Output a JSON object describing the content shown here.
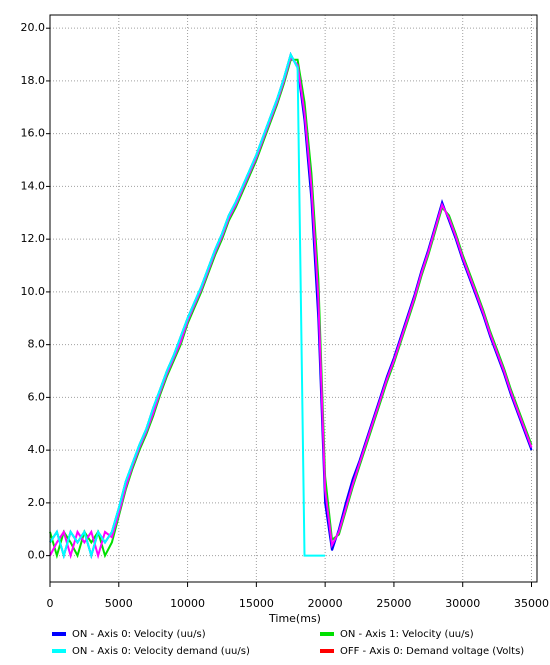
{
  "chart_data": {
    "type": "line",
    "x_label": "Time(ms)",
    "xlim": [
      0,
      35400
    ],
    "ylim": [
      -1.0,
      20.5
    ],
    "xticks": [
      0,
      5000,
      10000,
      15000,
      20000,
      25000,
      30000,
      35000
    ],
    "yticks": [
      {
        "value": 0,
        "label": "0.0"
      },
      {
        "value": 2,
        "label": "2.0"
      },
      {
        "value": 4,
        "label": "4.0"
      },
      {
        "value": 6,
        "label": "6.0"
      },
      {
        "value": 8,
        "label": "8.0"
      },
      {
        "value": 10,
        "label": "10.0"
      },
      {
        "value": 12,
        "label": "12.0"
      },
      {
        "value": 14,
        "label": "14.0"
      },
      {
        "value": 16,
        "label": "16.0"
      },
      {
        "value": 18,
        "label": "18.0"
      },
      {
        "value": 20,
        "label": "20.0"
      }
    ],
    "grid": true,
    "x": [
      0,
      500,
      1000,
      1500,
      2000,
      2500,
      3000,
      3500,
      4000,
      4500,
      5000,
      5500,
      6000,
      6500,
      7000,
      7500,
      8000,
      8500,
      9000,
      9500,
      10000,
      10500,
      11000,
      11500,
      12000,
      12500,
      13000,
      13500,
      14000,
      14500,
      15000,
      15500,
      16000,
      16500,
      17000,
      17500,
      18000,
      18500,
      19000,
      19500,
      20000,
      20500,
      21000,
      21500,
      22000,
      22500,
      23000,
      23500,
      24000,
      24500,
      25000,
      25500,
      26000,
      26500,
      27000,
      27500,
      28000,
      28500,
      29000,
      29500,
      30000,
      30500,
      31000,
      31500,
      32000,
      32500,
      33000,
      33500,
      34000,
      34500,
      35000
    ],
    "series": [
      {
        "name": "ON  - Axis 0: Velocity (uu/s)",
        "color": "#0000ff",
        "values": [
          0.5,
          0.9,
          0,
          0.9,
          0.5,
          0.9,
          0,
          0.9,
          0.5,
          0.9,
          1.8,
          2.8,
          3.5,
          4.2,
          4.8,
          5.6,
          6.3,
          7.0,
          7.6,
          8.3,
          9.0,
          9.6,
          10.2,
          10.9,
          11.6,
          12.2,
          12.9,
          13.4,
          14.0,
          14.6,
          15.2,
          15.9,
          16.6,
          17.3,
          18.1,
          19.0,
          18.5,
          16.5,
          13.5,
          9.0,
          2.0,
          0.2,
          1.0,
          2.0,
          2.9,
          3.6,
          4.4,
          5.2,
          6.0,
          6.8,
          7.5,
          8.3,
          9.1,
          9.9,
          10.8,
          11.6,
          12.5,
          13.4,
          12.7,
          12.0,
          11.2,
          10.5,
          9.8,
          9.1,
          8.3,
          7.6,
          6.9,
          6.1,
          5.4,
          4.7,
          4.0
        ]
      },
      {
        "name": "ON  - Axis 1: Velocity (uu/s)",
        "color": "#00e000",
        "values": [
          0.9,
          0,
          0.9,
          0.5,
          0,
          0.9,
          0.5,
          0.9,
          0,
          0.5,
          1.5,
          2.5,
          3.3,
          4.0,
          4.6,
          5.3,
          6.1,
          6.8,
          7.4,
          8.0,
          8.8,
          9.4,
          10.0,
          10.7,
          11.4,
          12.0,
          12.7,
          13.2,
          13.8,
          14.4,
          15.0,
          15.7,
          16.4,
          17.1,
          17.9,
          18.8,
          18.8,
          17.2,
          14.5,
          10.5,
          3.0,
          0.6,
          0.8,
          1.7,
          2.6,
          3.4,
          4.2,
          5.0,
          5.8,
          6.6,
          7.3,
          8.1,
          8.9,
          9.7,
          10.6,
          11.4,
          12.3,
          13.2,
          12.9,
          12.2,
          11.4,
          10.7,
          10.0,
          9.3,
          8.5,
          7.8,
          7.1,
          6.3,
          5.6,
          4.9,
          4.2
        ]
      },
      {
        "color": "#ff00ff",
        "values": [
          0,
          0.5,
          0.9,
          0,
          0.9,
          0.5,
          0.9,
          0,
          0.9,
          0.7,
          1.6,
          2.6,
          3.4,
          4.1,
          4.7,
          5.4,
          6.2,
          6.9,
          7.5,
          8.1,
          8.9,
          9.5,
          10.1,
          10.8,
          11.5,
          12.1,
          12.8,
          13.3,
          13.9,
          14.5,
          15.1,
          15.8,
          16.5,
          17.2,
          18.0,
          18.9,
          18.6,
          16.8,
          14.0,
          9.8,
          2.5,
          0.4,
          0.9,
          1.8,
          2.7,
          3.5,
          4.3,
          5.1,
          5.9,
          6.7,
          7.4,
          8.2,
          9.0,
          9.8,
          10.7,
          11.5,
          12.4,
          13.3,
          12.8,
          12.1,
          11.3,
          10.6,
          9.9,
          9.2,
          8.4,
          7.7,
          7.0,
          6.2,
          5.5,
          4.8,
          4.1
        ]
      },
      {
        "name": "ON  - Axis 0: Velocity demand (uu/s)",
        "color": "#00ffff",
        "values": [
          0.5,
          0.9,
          0,
          0.9,
          0.5,
          0.9,
          0,
          0.9,
          0.5,
          0.9,
          1.8,
          2.8,
          3.5,
          4.2,
          4.8,
          5.6,
          6.3,
          7.0,
          7.6,
          8.3,
          9.0,
          9.6,
          10.2,
          10.9,
          11.6,
          12.2,
          12.9,
          13.4,
          14.0,
          14.6,
          15.2,
          15.9,
          16.6,
          17.3,
          18.1,
          19.0,
          18.5,
          0,
          0,
          0,
          0,
          null,
          null,
          null,
          null,
          null,
          null,
          null,
          null,
          null,
          null,
          null,
          null,
          null,
          null,
          null,
          null,
          null,
          null,
          null,
          null,
          null,
          null,
          null,
          null,
          null,
          null,
          null,
          null,
          null,
          null
        ]
      },
      {
        "name": "OFF - Axis 0: Demand voltage (Volts)",
        "color": "#ff0000"
      }
    ]
  }
}
